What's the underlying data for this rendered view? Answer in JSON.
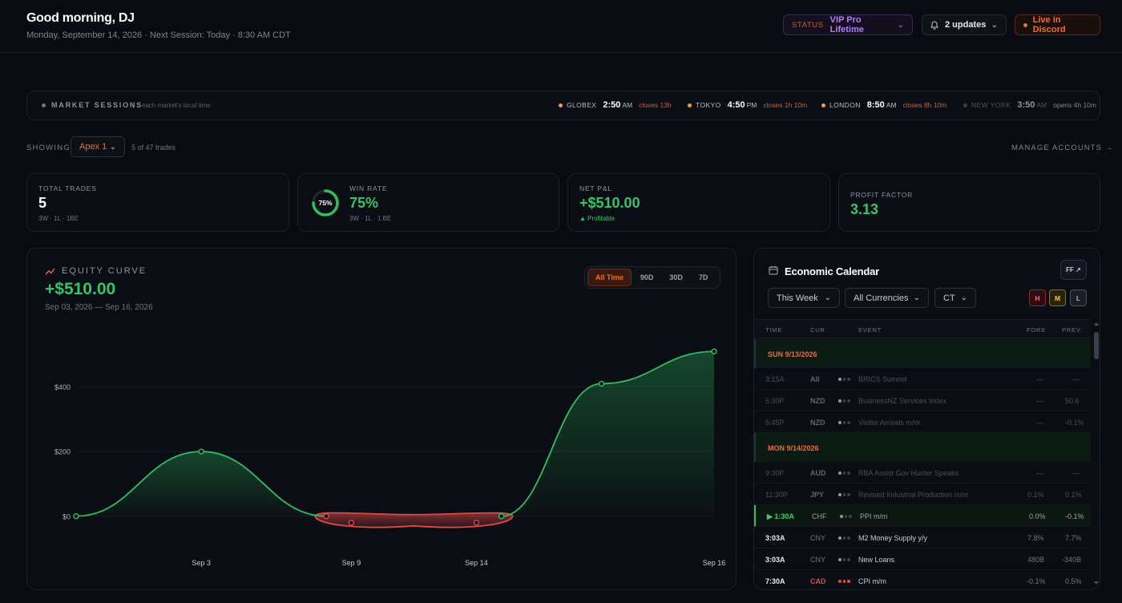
{
  "header": {
    "greeting": "Good morning, DJ",
    "subtitle": "Monday, September 14, 2026 · Next Session: Today · 8:30 AM CDT",
    "status_label": "STATUS",
    "status_value": "VIP Pro Lifetime",
    "updates_label": "2 updates",
    "discord_label": "Live in Discord"
  },
  "sessions": {
    "title": "MARKET SESSIONS",
    "subtitle": "each market's local time",
    "markets": [
      {
        "name": "GLOBEX",
        "time": "2:50",
        "ampm": "AM",
        "note": "closes 13h",
        "dot": "#f39a2e"
      },
      {
        "name": "TOKYO",
        "time": "4:50",
        "ampm": "PM",
        "note": "closes 1h 10m",
        "dot": "#f39a2e"
      },
      {
        "name": "LONDON",
        "time": "8:50",
        "ampm": "AM",
        "note": "closes 8h 10m",
        "dot": "#f39a2e"
      },
      {
        "name": "NEW YORK",
        "time": "3:50",
        "ampm": "AM",
        "note": "opens 4h 10m",
        "dot": "#3a404a"
      }
    ]
  },
  "filter": {
    "showing_label": "SHOWING",
    "account": "Apex 1",
    "count": "5 of 47 trades",
    "manage": "MANAGE ACCOUNTS →"
  },
  "stats": {
    "total_trades": {
      "label": "TOTAL TRADES",
      "value": "5",
      "sub": "3W · 1L · 1BE"
    },
    "win_rate": {
      "label": "WIN RATE",
      "value": "75%",
      "ring": "75%",
      "sub": "3W · 1L · 1 BE",
      "fraction": 0.75
    },
    "net_pnl": {
      "label": "NET P&L",
      "value": "+$510.00",
      "sub": "▲ Profitable"
    },
    "profit_factor": {
      "label": "PROFIT FACTOR",
      "value": "3.13"
    }
  },
  "equity": {
    "title": "EQUITY CURVE",
    "value": "+$510.00",
    "range": "Sep 03, 2026 — Sep 16, 2026",
    "ranges": [
      "All Time",
      "90D",
      "30D",
      "7D"
    ],
    "active_range": "All Time"
  },
  "chart_data": {
    "type": "area",
    "title": "",
    "xlabel": "",
    "ylabel": "",
    "x": [
      "Sep 3 (start)",
      "Sep 3",
      "Sep 9",
      "Sep 9 (low)",
      "Sep 14 (low)",
      "Sep 14",
      "Sep 16 (mid)",
      "Sep 16"
    ],
    "points": [
      {
        "x": 0,
        "y": 0
      },
      {
        "x": 1,
        "y": 200
      },
      {
        "x": 2,
        "y": 0
      },
      {
        "x": 2.2,
        "y": -20
      },
      {
        "x": 3.2,
        "y": -20
      },
      {
        "x": 3.4,
        "y": 0
      },
      {
        "x": 4.2,
        "y": 410
      },
      {
        "x": 5.1,
        "y": 510
      }
    ],
    "x_ticks": [
      {
        "x": 1,
        "label": "Sep 3"
      },
      {
        "x": 2.2,
        "label": "Sep 9"
      },
      {
        "x": 3.2,
        "label": "Sep 14"
      },
      {
        "x": 5.1,
        "label": "Sep 16"
      }
    ],
    "y_ticks": [
      0,
      200,
      400
    ],
    "y_tick_labels": [
      "$0",
      "$200",
      "$400"
    ],
    "ylim": [
      -80,
      580
    ],
    "xlim": [
      0,
      5.1
    ],
    "grid": true,
    "colors": {
      "positive": "#2fbf60",
      "negative": "#e04848"
    }
  },
  "calendar": {
    "title": "Economic Calendar",
    "ff": "FF ↗",
    "week": "This Week",
    "currencies": "All Currencies",
    "tz": "CT",
    "impact": [
      "H",
      "M",
      "L"
    ],
    "columns": [
      "TIME",
      "CUR",
      "EVENT",
      "FORE",
      "PREV"
    ],
    "rows": [
      {
        "kind": "day",
        "label": "SUN 9/13/2026"
      },
      {
        "kind": "past",
        "time": "3:15A",
        "cur": "All",
        "imp": 1,
        "event": "BRICS Summit",
        "fore": "—",
        "prev": "—"
      },
      {
        "kind": "past",
        "time": "5:30P",
        "cur": "NZD",
        "imp": 1,
        "event": "BusinessNZ Services Index",
        "fore": "—",
        "prev": "50.6"
      },
      {
        "kind": "past",
        "time": "5:45P",
        "cur": "NZD",
        "imp": 1,
        "event": "Visitor Arrivals m/m",
        "fore": "—",
        "prev": "-0.1%"
      },
      {
        "kind": "day",
        "label": "MON 9/14/2026"
      },
      {
        "kind": "past",
        "time": "9:30P",
        "cur": "AUD",
        "imp": 1,
        "event": "RBA Assist Gov Hunter Speaks",
        "fore": "—",
        "prev": "—"
      },
      {
        "kind": "past",
        "time": "11:30P",
        "cur": "JPY",
        "imp": 1,
        "event": "Revised Industrial Production m/m",
        "fore": "0.1%",
        "prev": "0.1%"
      },
      {
        "kind": "now",
        "time": "▶ 1:30A",
        "cur": "CHF",
        "imp": 1,
        "event": "PPI m/m",
        "fore": "0.0%",
        "prev": "-0.1%"
      },
      {
        "kind": "future",
        "time": "3:03A",
        "cur": "CNY",
        "imp": 1,
        "event": "M2 Money Supply y/y",
        "fore": "7.8%",
        "prev": "7.7%"
      },
      {
        "kind": "future",
        "time": "3:03A",
        "cur": "CNY",
        "imp": 1,
        "event": "New Loans",
        "fore": "480B",
        "prev": "-340B"
      },
      {
        "kind": "future",
        "time": "7:30A",
        "cur": "CAD",
        "imp": 3,
        "event": "CPI m/m",
        "fore": "-0.1%",
        "prev": "0.5%"
      }
    ]
  }
}
